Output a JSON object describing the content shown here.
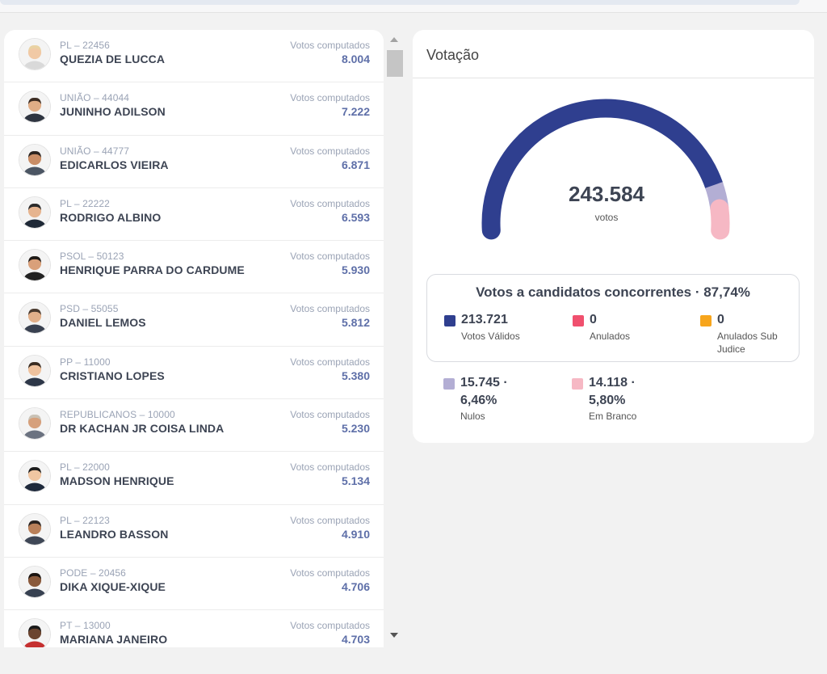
{
  "candidates": [
    {
      "party": "PL – 22456",
      "name": "QUEZIA DE LUCCA",
      "votes_label": "Votos computados",
      "votes": "8.004"
    },
    {
      "party": "UNIÃO – 44044",
      "name": "JUNINHO ADILSON",
      "votes_label": "Votos computados",
      "votes": "7.222"
    },
    {
      "party": "UNIÃO – 44777",
      "name": "EDICARLOS VIEIRA",
      "votes_label": "Votos computados",
      "votes": "6.871"
    },
    {
      "party": "PL – 22222",
      "name": "RODRIGO ALBINO",
      "votes_label": "Votos computados",
      "votes": "6.593"
    },
    {
      "party": "PSOL – 50123",
      "name": "HENRIQUE PARRA DO CARDUME",
      "votes_label": "Votos computados",
      "votes": "5.930"
    },
    {
      "party": "PSD – 55055",
      "name": "DANIEL LEMOS",
      "votes_label": "Votos computados",
      "votes": "5.812"
    },
    {
      "party": "PP – 11000",
      "name": "CRISTIANO LOPES",
      "votes_label": "Votos computados",
      "votes": "5.380"
    },
    {
      "party": "REPUBLICANOS – 10000",
      "name": "DR KACHAN JR COISA LINDA",
      "votes_label": "Votos computados",
      "votes": "5.230"
    },
    {
      "party": "PL – 22000",
      "name": "MADSON HENRIQUE",
      "votes_label": "Votos computados",
      "votes": "5.134"
    },
    {
      "party": "PL – 22123",
      "name": "LEANDRO BASSON",
      "votes_label": "Votos computados",
      "votes": "4.910"
    },
    {
      "party": "PODE – 20456",
      "name": "DIKA XIQUE-XIQUE",
      "votes_label": "Votos computados",
      "votes": "4.706"
    },
    {
      "party": "PT – 13000",
      "name": "MARIANA JANEIRO",
      "votes_label": "Votos computados",
      "votes": "4.703"
    }
  ],
  "voting": {
    "title": "Votação",
    "total": "243.584",
    "total_unit": "votos",
    "gauge_shares": {
      "validos": 87.74,
      "nulos": 6.46,
      "branco": 5.8
    },
    "summary_title": "Votos a candidatos concorrentes · 87,74%",
    "validos": {
      "value": "213.721",
      "label": "Votos Válidos",
      "color": "#2f3f8f"
    },
    "anulados": {
      "value": "0",
      "label": "Anulados",
      "color": "#f0506e"
    },
    "anulados_sub": {
      "value": "0",
      "label_line1": "Anulados Sub",
      "label_line2": "Judice",
      "color": "#f7a51c"
    },
    "nulos": {
      "value_line1": "15.745 ·",
      "value_line2": "6,46%",
      "label": "Nulos",
      "color": "#b3aed4"
    },
    "branco": {
      "value_line1": "14.118 ·",
      "value_line2": "5,80%",
      "label": "Em Branco",
      "color": "#f6b8c4"
    }
  }
}
